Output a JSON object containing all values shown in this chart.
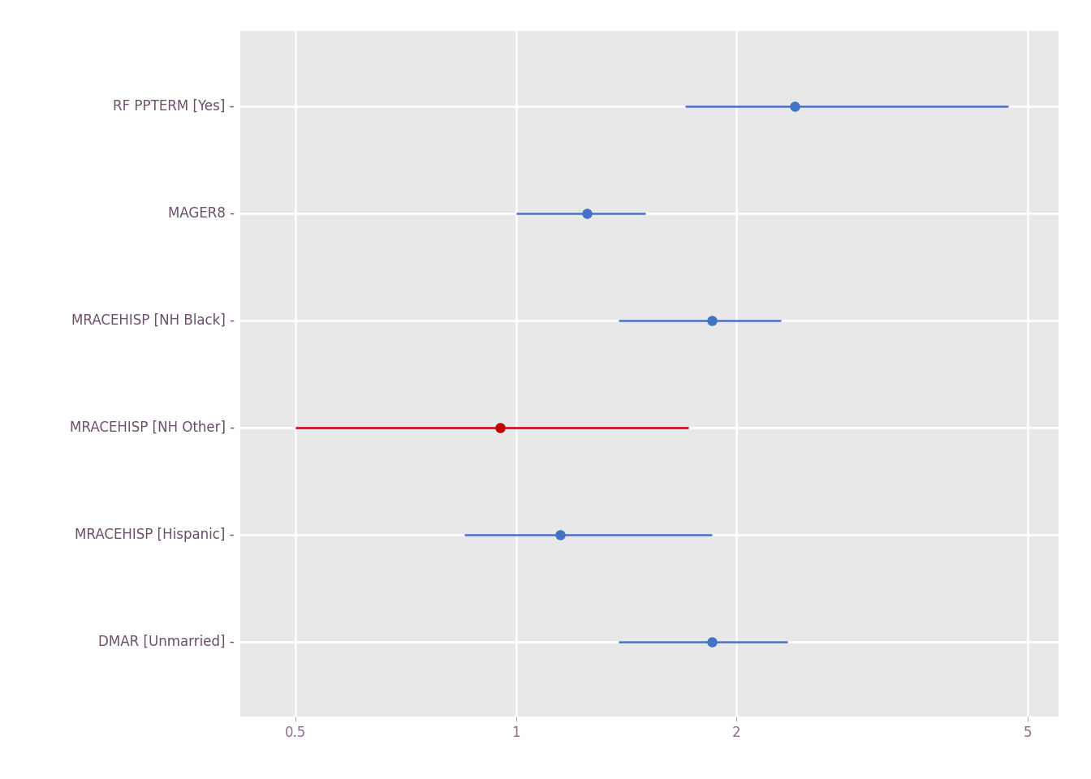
{
  "predictors": [
    "RF PPTERM [Yes]",
    "MAGER8",
    "MRACEHISP [NH Black]",
    "MRACEHISP [NH Other]",
    "MRACEHISP [Hispanic]",
    "DMAR [Unmarried]"
  ],
  "estimates": [
    2.4,
    1.25,
    1.85,
    0.95,
    1.15,
    1.85
  ],
  "ci_low": [
    1.7,
    1.0,
    1.38,
    0.5,
    0.85,
    1.38
  ],
  "ci_high": [
    4.7,
    1.5,
    2.3,
    1.72,
    1.85,
    2.35
  ],
  "colors": [
    "#4472C4",
    "#4472C4",
    "#4472C4",
    "#C00000",
    "#4472C4",
    "#4472C4"
  ],
  "xlim": [
    0.42,
    5.5
  ],
  "xticks": [
    0.5,
    1.0,
    2.0,
    5.0
  ],
  "xtick_labels": [
    "0.5",
    "1",
    "2",
    "5"
  ],
  "background_color": "#FFFFFF",
  "plot_bg_color": "#E8E8E8",
  "grid_color": "#FFFFFF",
  "label_color": "#6B4E6B",
  "tick_label_color": "#8B6E8B",
  "point_size": 9,
  "line_width": 1.8,
  "label_fontsize": 12,
  "tick_fontsize": 12
}
